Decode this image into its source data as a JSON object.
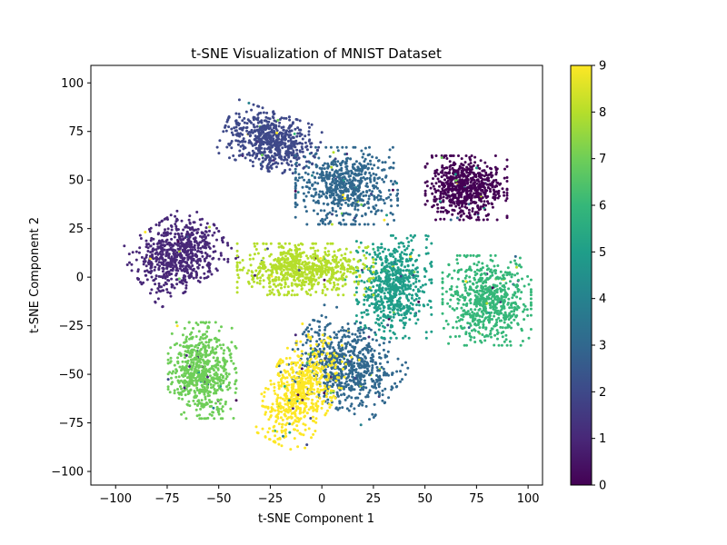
{
  "chart_data": {
    "type": "scatter",
    "title": "t-SNE Visualization of MNIST Dataset",
    "xlabel": "t-SNE Component 1",
    "ylabel": "t-SNE Component 2",
    "xlim": [
      -112,
      107
    ],
    "ylim": [
      -107,
      109
    ],
    "xticks": [
      -100,
      -75,
      -50,
      -25,
      0,
      25,
      50,
      75,
      100
    ],
    "yticks": [
      -100,
      -75,
      -50,
      -25,
      0,
      25,
      50,
      75,
      100
    ],
    "grid": false,
    "colormap": "viridis",
    "colorbar": {
      "range": [
        0,
        9
      ],
      "ticks": [
        0,
        1,
        2,
        3,
        4,
        5,
        6,
        7,
        8,
        9
      ]
    },
    "colors": [
      "#440154",
      "#472d7b",
      "#3b528b",
      "#2c728e",
      "#21918c",
      "#28ae80",
      "#5ec962",
      "#addc30",
      "#fde725"
    ],
    "clusters": [
      {
        "value": 0,
        "cx": 70,
        "cy": 46,
        "sx": 12,
        "sy": 10,
        "points": 700
      },
      {
        "value": 1,
        "cx": -70,
        "cy": 12,
        "sx": 14,
        "sy": 11,
        "angle": 35,
        "points": 700
      },
      {
        "value": 2,
        "cx": -25,
        "cy": 70,
        "sx": 14,
        "sy": 9,
        "angle": -20,
        "points": 650
      },
      {
        "value": 3,
        "cx": 12,
        "cy": 47,
        "sx": 15,
        "sy": 12,
        "points": 650
      },
      {
        "value": 3,
        "cx": 12,
        "cy": -45,
        "sx": 16,
        "sy": 13,
        "angle": -35,
        "points": 700
      },
      {
        "value": 5,
        "cx": 35,
        "cy": -5,
        "sx": 11,
        "sy": 16,
        "points": 650
      },
      {
        "value": 6,
        "cx": 80,
        "cy": -12,
        "sx": 13,
        "sy": 14,
        "points": 650
      },
      {
        "value": 7,
        "cx": -58,
        "cy": -48,
        "sx": 10,
        "sy": 15,
        "points": 650
      },
      {
        "value": 8,
        "cx": -8,
        "cy": 4,
        "sx": 20,
        "sy": 8,
        "points": 700
      },
      {
        "value": 9,
        "cx": -10,
        "cy": -58,
        "sx": 10,
        "sy": 18,
        "angle": -30,
        "points": 650
      }
    ]
  }
}
